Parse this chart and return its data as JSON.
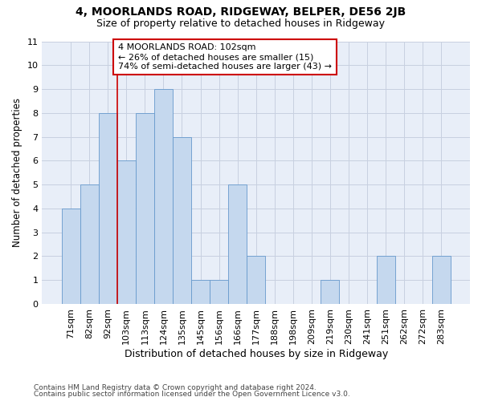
{
  "title1": "4, MOORLANDS ROAD, RIDGEWAY, BELPER, DE56 2JB",
  "title2": "Size of property relative to detached houses in Ridgeway",
  "xlabel": "Distribution of detached houses by size in Ridgeway",
  "ylabel": "Number of detached properties",
  "categories": [
    "71sqm",
    "82sqm",
    "92sqm",
    "103sqm",
    "113sqm",
    "124sqm",
    "135sqm",
    "145sqm",
    "156sqm",
    "166sqm",
    "177sqm",
    "188sqm",
    "198sqm",
    "209sqm",
    "219sqm",
    "230sqm",
    "241sqm",
    "251sqm",
    "262sqm",
    "272sqm",
    "283sqm"
  ],
  "values": [
    4,
    5,
    8,
    6,
    8,
    9,
    7,
    1,
    1,
    5,
    2,
    0,
    0,
    0,
    1,
    0,
    0,
    2,
    0,
    0,
    2
  ],
  "bar_color": "#c5d8ee",
  "bar_edgecolor": "#6699cc",
  "vline_x_pos": 2.5,
  "vline_color": "#cc0000",
  "annotation_text": "4 MOORLANDS ROAD: 102sqm\n← 26% of detached houses are smaller (15)\n74% of semi-detached houses are larger (43) →",
  "annotation_box_edgecolor": "#cc0000",
  "ylim_min": 0,
  "ylim_max": 11,
  "yticks": [
    0,
    1,
    2,
    3,
    4,
    5,
    6,
    7,
    8,
    9,
    10,
    11
  ],
  "grid_color": "#c8d0e0",
  "bg_color": "#e8eef8",
  "footer1": "Contains HM Land Registry data © Crown copyright and database right 2024.",
  "footer2": "Contains public sector information licensed under the Open Government Licence v3.0.",
  "title1_fontsize": 10,
  "title2_fontsize": 9,
  "tick_fontsize": 8,
  "ylabel_fontsize": 8.5,
  "xlabel_fontsize": 9,
  "annot_fontsize": 8
}
